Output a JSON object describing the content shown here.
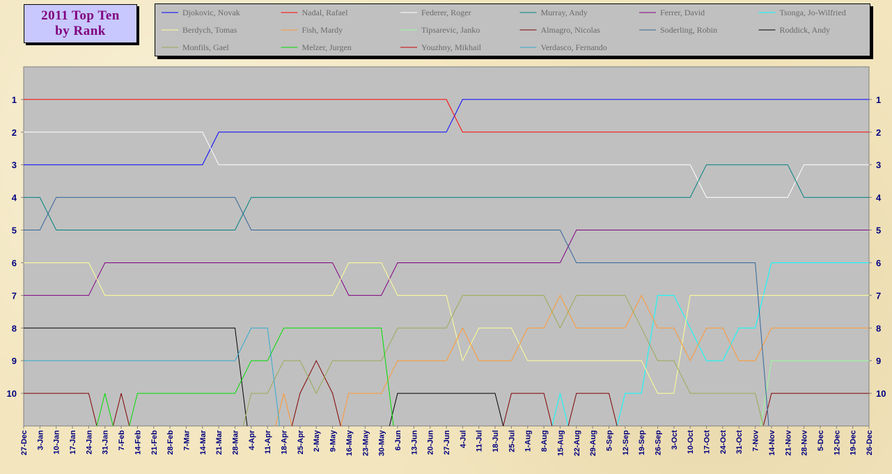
{
  "title_lines": [
    "2011 Top Ten",
    "by Rank"
  ],
  "chart_data": {
    "type": "line",
    "title": "2011 Top Ten by Rank",
    "xlabel": "",
    "ylabel": "",
    "x": [
      "27-Dec",
      "3-Jan",
      "10-Jan",
      "17-Jan",
      "24-Jan",
      "31-Jan",
      "7-Feb",
      "14-Feb",
      "21-Feb",
      "28-Feb",
      "7-Mar",
      "14-Mar",
      "21-Mar",
      "28-Mar",
      "4-Apr",
      "11-Apr",
      "18-Apr",
      "25-Apr",
      "2-May",
      "9-May",
      "16-May",
      "23-May",
      "30-May",
      "6-Jun",
      "13-Jun",
      "20-Jun",
      "27-Jun",
      "4-Jul",
      "11-Jul",
      "18-Jul",
      "25-Jul",
      "1-Aug",
      "8-Aug",
      "15-Aug",
      "22-Aug",
      "29-Aug",
      "5-Sep",
      "12-Sep",
      "19-Sep",
      "26-Sep",
      "3-Oct",
      "10-Oct",
      "17-Oct",
      "24-Oct",
      "31-Oct",
      "7-Nov",
      "14-Nov",
      "21-Nov",
      "28-Nov",
      "5-Dec",
      "12-Dec",
      "19-Dec",
      "26-Dec"
    ],
    "y_ticks": [
      1,
      2,
      3,
      4,
      5,
      6,
      7,
      8,
      9,
      10
    ],
    "ylim": [
      11,
      0
    ],
    "grid": false,
    "legend_position": "top",
    "series": [
      {
        "name": "Djokovic, Novak",
        "color": "#0000ff",
        "values": [
          3,
          3,
          3,
          3,
          3,
          3,
          3,
          3,
          3,
          3,
          3,
          3,
          2,
          2,
          2,
          2,
          2,
          2,
          2,
          2,
          2,
          2,
          2,
          2,
          2,
          2,
          2,
          1,
          1,
          1,
          1,
          1,
          1,
          1,
          1,
          1,
          1,
          1,
          1,
          1,
          1,
          1,
          1,
          1,
          1,
          1,
          1,
          1,
          1,
          1,
          1,
          1,
          1
        ]
      },
      {
        "name": "Nadal, Rafael",
        "color": "#ff0000",
        "values": [
          1,
          1,
          1,
          1,
          1,
          1,
          1,
          1,
          1,
          1,
          1,
          1,
          1,
          1,
          1,
          1,
          1,
          1,
          1,
          1,
          1,
          1,
          1,
          1,
          1,
          1,
          1,
          2,
          2,
          2,
          2,
          2,
          2,
          2,
          2,
          2,
          2,
          2,
          2,
          2,
          2,
          2,
          2,
          2,
          2,
          2,
          2,
          2,
          2,
          2,
          2,
          2,
          2
        ]
      },
      {
        "name": "Federer, Roger",
        "color": "#ffffff",
        "values": [
          2,
          2,
          2,
          2,
          2,
          2,
          2,
          2,
          2,
          2,
          2,
          2,
          3,
          3,
          3,
          3,
          3,
          3,
          3,
          3,
          3,
          3,
          3,
          3,
          3,
          3,
          3,
          3,
          3,
          3,
          3,
          3,
          3,
          3,
          3,
          3,
          3,
          3,
          3,
          3,
          3,
          3,
          4,
          4,
          4,
          4,
          4,
          4,
          3,
          3,
          3,
          3,
          3
        ]
      },
      {
        "name": "Murray, Andy",
        "color": "#008080",
        "values": [
          4,
          4,
          5,
          5,
          5,
          5,
          5,
          5,
          5,
          5,
          5,
          5,
          5,
          5,
          4,
          4,
          4,
          4,
          4,
          4,
          4,
          4,
          4,
          4,
          4,
          4,
          4,
          4,
          4,
          4,
          4,
          4,
          4,
          4,
          4,
          4,
          4,
          4,
          4,
          4,
          4,
          4,
          3,
          3,
          3,
          3,
          3,
          3,
          4,
          4,
          4,
          4,
          4
        ]
      },
      {
        "name": "Ferrer, David",
        "color": "#800080",
        "values": [
          7,
          7,
          7,
          7,
          7,
          6,
          6,
          6,
          6,
          6,
          6,
          6,
          6,
          6,
          6,
          6,
          6,
          6,
          6,
          6,
          7,
          7,
          7,
          6,
          6,
          6,
          6,
          6,
          6,
          6,
          6,
          6,
          6,
          6,
          5,
          5,
          5,
          5,
          5,
          5,
          5,
          5,
          5,
          5,
          5,
          5,
          5,
          5,
          5,
          5,
          5,
          5,
          5
        ]
      },
      {
        "name": "Tsonga, Jo-Wilfried",
        "color": "#00ffff",
        "values": [
          null,
          null,
          null,
          null,
          null,
          null,
          null,
          null,
          null,
          null,
          null,
          null,
          null,
          null,
          null,
          null,
          null,
          null,
          null,
          null,
          null,
          null,
          null,
          null,
          null,
          null,
          null,
          null,
          null,
          null,
          null,
          null,
          null,
          10,
          null,
          null,
          null,
          10,
          10,
          7,
          7,
          8,
          9,
          9,
          8,
          8,
          6,
          6,
          6,
          6,
          6,
          6,
          6
        ]
      },
      {
        "name": "Berdych, Tomas",
        "color": "#ffff99",
        "values": [
          6,
          6,
          6,
          6,
          6,
          7,
          7,
          7,
          7,
          7,
          7,
          7,
          7,
          7,
          7,
          7,
          7,
          7,
          7,
          7,
          6,
          6,
          6,
          7,
          7,
          7,
          7,
          9,
          8,
          8,
          8,
          9,
          9,
          9,
          9,
          9,
          9,
          9,
          9,
          10,
          10,
          7,
          7,
          7,
          7,
          7,
          7,
          7,
          7,
          7,
          7,
          7,
          7
        ]
      },
      {
        "name": "Fish, Mardy",
        "color": "#ff9933",
        "values": [
          null,
          null,
          null,
          null,
          null,
          null,
          null,
          null,
          null,
          null,
          null,
          null,
          null,
          null,
          null,
          null,
          10,
          null,
          null,
          null,
          10,
          10,
          10,
          9,
          9,
          9,
          9,
          8,
          9,
          9,
          9,
          8,
          8,
          7,
          8,
          8,
          8,
          8,
          7,
          8,
          8,
          9,
          8,
          8,
          9,
          9,
          8,
          8,
          8,
          8,
          8,
          8,
          8
        ]
      },
      {
        "name": "Tipsarevic, Janko",
        "color": "#99ff99",
        "values": [
          null,
          null,
          null,
          null,
          null,
          null,
          null,
          null,
          null,
          null,
          null,
          null,
          null,
          null,
          null,
          null,
          null,
          null,
          null,
          null,
          null,
          null,
          null,
          null,
          null,
          null,
          null,
          null,
          null,
          null,
          null,
          null,
          null,
          null,
          null,
          null,
          null,
          null,
          null,
          null,
          null,
          null,
          null,
          null,
          null,
          null,
          9,
          9,
          9,
          9,
          9,
          9,
          9
        ]
      },
      {
        "name": "Almagro, Nicolas",
        "color": "#800000",
        "values": [
          10,
          10,
          10,
          10,
          10,
          null,
          10,
          null,
          null,
          null,
          null,
          null,
          null,
          null,
          null,
          null,
          null,
          10,
          9,
          10,
          null,
          null,
          null,
          null,
          null,
          null,
          null,
          null,
          null,
          null,
          10,
          10,
          10,
          null,
          10,
          10,
          10,
          null,
          null,
          null,
          null,
          null,
          null,
          null,
          null,
          null,
          10,
          10,
          10,
          10,
          10,
          10,
          10
        ]
      },
      {
        "name": "Soderling, Robin",
        "color": "#336699",
        "values": [
          5,
          5,
          4,
          4,
          4,
          4,
          4,
          4,
          4,
          4,
          4,
          4,
          4,
          4,
          5,
          5,
          5,
          5,
          5,
          5,
          5,
          5,
          5,
          5,
          5,
          5,
          5,
          5,
          5,
          5,
          5,
          5,
          5,
          5,
          6,
          6,
          6,
          6,
          6,
          6,
          6,
          6,
          6,
          6,
          6,
          6,
          null,
          null,
          null,
          null,
          null,
          null,
          null
        ]
      },
      {
        "name": "Roddick, Andy",
        "color": "#000000",
        "values": [
          8,
          8,
          8,
          8,
          8,
          8,
          8,
          8,
          8,
          8,
          8,
          8,
          8,
          8,
          null,
          null,
          null,
          null,
          null,
          null,
          null,
          null,
          null,
          10,
          10,
          10,
          10,
          10,
          10,
          10,
          null,
          null,
          null,
          null,
          null,
          null,
          null,
          null,
          null,
          null,
          null,
          null,
          null,
          null,
          null,
          null,
          null,
          null,
          null,
          null,
          null,
          null,
          null
        ]
      },
      {
        "name": "Monfils, Gael",
        "color": "#99aa55",
        "values": [
          null,
          null,
          null,
          null,
          null,
          null,
          null,
          null,
          null,
          null,
          null,
          null,
          null,
          null,
          10,
          10,
          9,
          9,
          10,
          9,
          9,
          9,
          9,
          8,
          8,
          8,
          8,
          7,
          7,
          7,
          7,
          7,
          7,
          8,
          7,
          7,
          7,
          7,
          8,
          9,
          9,
          10,
          10,
          10,
          10,
          10,
          null,
          null,
          null,
          null,
          null,
          null,
          null
        ]
      },
      {
        "name": "Melzer, Jurgen",
        "color": "#00dd00",
        "values": [
          null,
          null,
          null,
          null,
          null,
          10,
          null,
          10,
          10,
          10,
          10,
          10,
          10,
          10,
          9,
          9,
          8,
          8,
          8,
          8,
          8,
          8,
          8,
          null,
          null,
          null,
          null,
          null,
          null,
          null,
          null,
          null,
          null,
          null,
          null,
          null,
          null,
          null,
          null,
          null,
          null,
          null,
          null,
          null,
          null,
          null,
          null,
          null,
          null,
          null,
          null,
          null,
          null
        ]
      },
      {
        "name": "Youzhny, Mikhail",
        "color": "#cc0000",
        "values": [
          null,
          null,
          null,
          null,
          null,
          null,
          null,
          null,
          null,
          null,
          null,
          null,
          null,
          null,
          null,
          null,
          null,
          null,
          null,
          null,
          null,
          null,
          null,
          null,
          null,
          null,
          null,
          null,
          null,
          null,
          null,
          null,
          null,
          null,
          null,
          null,
          null,
          null,
          null,
          null,
          null,
          null,
          null,
          null,
          null,
          null,
          null,
          null,
          null,
          null,
          null,
          null,
          null
        ]
      },
      {
        "name": "Verdasco, Fernando",
        "color": "#33aacc",
        "values": [
          9,
          9,
          9,
          9,
          9,
          9,
          9,
          9,
          9,
          9,
          9,
          9,
          9,
          9,
          8,
          8,
          null,
          null,
          null,
          null,
          null,
          null,
          null,
          null,
          null,
          null,
          null,
          null,
          null,
          null,
          null,
          null,
          null,
          null,
          null,
          null,
          null,
          null,
          null,
          null,
          null,
          null,
          null,
          null,
          null,
          null,
          null,
          null,
          null,
          null,
          null,
          null,
          null
        ]
      }
    ]
  }
}
